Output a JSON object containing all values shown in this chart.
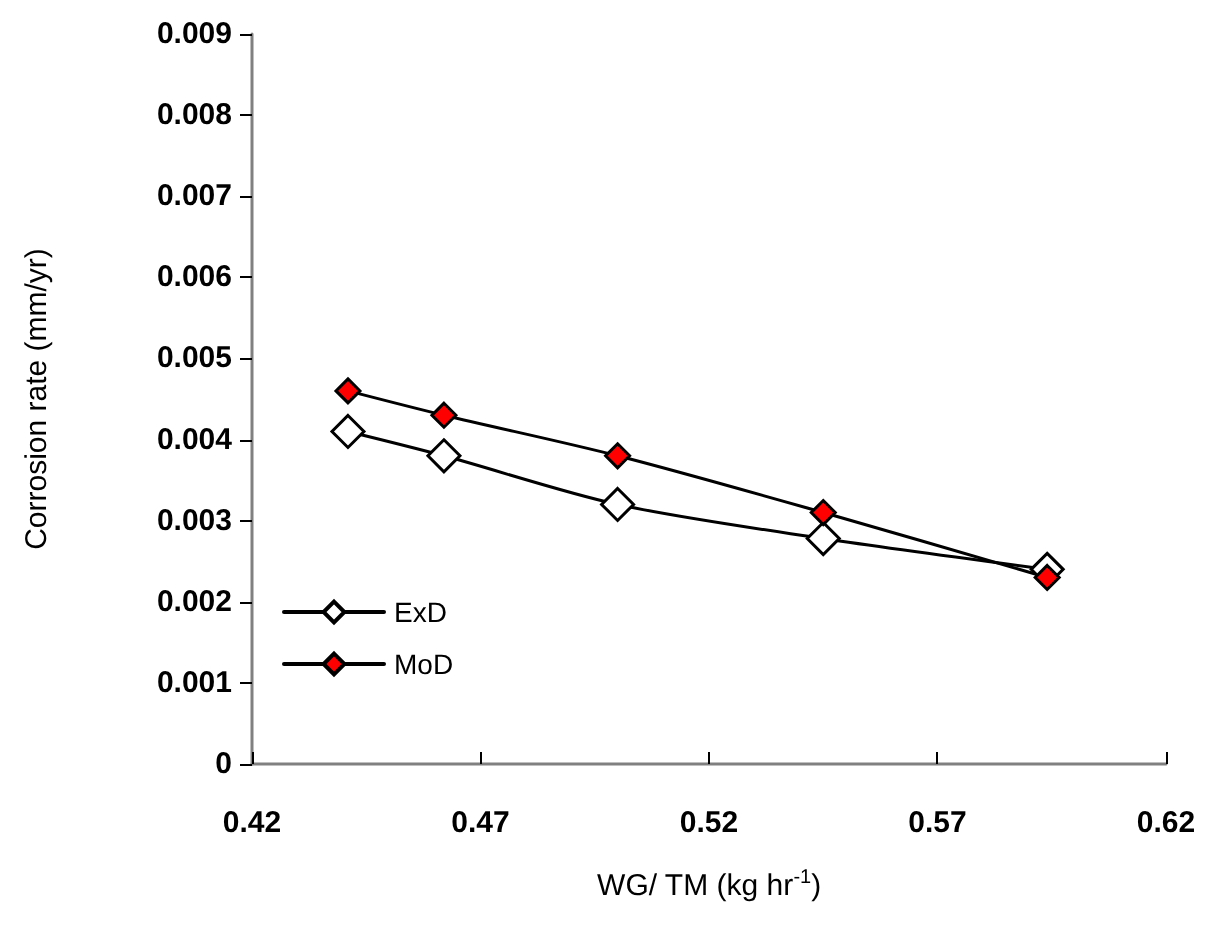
{
  "chart_data": {
    "type": "line",
    "xlabel": "WG/ TM (kg hr$^{-1}$)",
    "ylabel": "Corrosion rate (mm/yr)",
    "x": [
      0.441,
      0.462,
      0.5,
      0.545,
      0.594
    ],
    "series": [
      {
        "name": "ExD",
        "color": "#ffffff",
        "values": [
          0.0041,
          0.0038,
          0.0032,
          0.00278,
          0.0024
        ]
      },
      {
        "name": "MoD",
        "color": "#ff0000",
        "values": [
          0.0046,
          0.0043,
          0.0038,
          0.0031,
          0.0023
        ]
      }
    ],
    "xlim": [
      0.42,
      0.62
    ],
    "xticks": [
      0.42,
      0.47,
      0.52,
      0.57,
      0.62
    ],
    "ylim": [
      0,
      0.009
    ],
    "yticks": [
      0,
      0.001,
      0.002,
      0.003,
      0.004,
      0.005,
      0.006,
      0.007,
      0.008,
      0.009
    ],
    "grid": false,
    "legend": "bottom left",
    "marker": "diamond",
    "line_style": "solid"
  }
}
